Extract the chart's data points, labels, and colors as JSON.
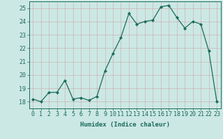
{
  "x": [
    0,
    1,
    2,
    3,
    4,
    5,
    6,
    7,
    8,
    9,
    10,
    11,
    12,
    13,
    14,
    15,
    16,
    17,
    18,
    19,
    20,
    21,
    22,
    23
  ],
  "y": [
    18.2,
    18.0,
    18.7,
    18.7,
    19.6,
    18.2,
    18.3,
    18.1,
    18.4,
    20.3,
    21.6,
    22.8,
    24.6,
    23.8,
    24.0,
    24.1,
    25.1,
    25.2,
    24.3,
    23.5,
    24.0,
    23.8,
    21.8,
    18.0
  ],
  "line_color": "#1a6b5a",
  "marker": "D",
  "marker_size": 2.2,
  "bg_color": "#cce8e4",
  "grid_color": "#b0d5d0",
  "axis_color": "#1a6b5a",
  "xlabel": "Humidex (Indice chaleur)",
  "xlim": [
    -0.5,
    23.5
  ],
  "ylim": [
    17.5,
    25.5
  ],
  "yticks": [
    18,
    19,
    20,
    21,
    22,
    23,
    24,
    25
  ],
  "xticks": [
    0,
    1,
    2,
    3,
    4,
    5,
    6,
    7,
    8,
    9,
    10,
    11,
    12,
    13,
    14,
    15,
    16,
    17,
    18,
    19,
    20,
    21,
    22,
    23
  ],
  "xlabel_fontsize": 6.5,
  "tick_fontsize": 6.0
}
